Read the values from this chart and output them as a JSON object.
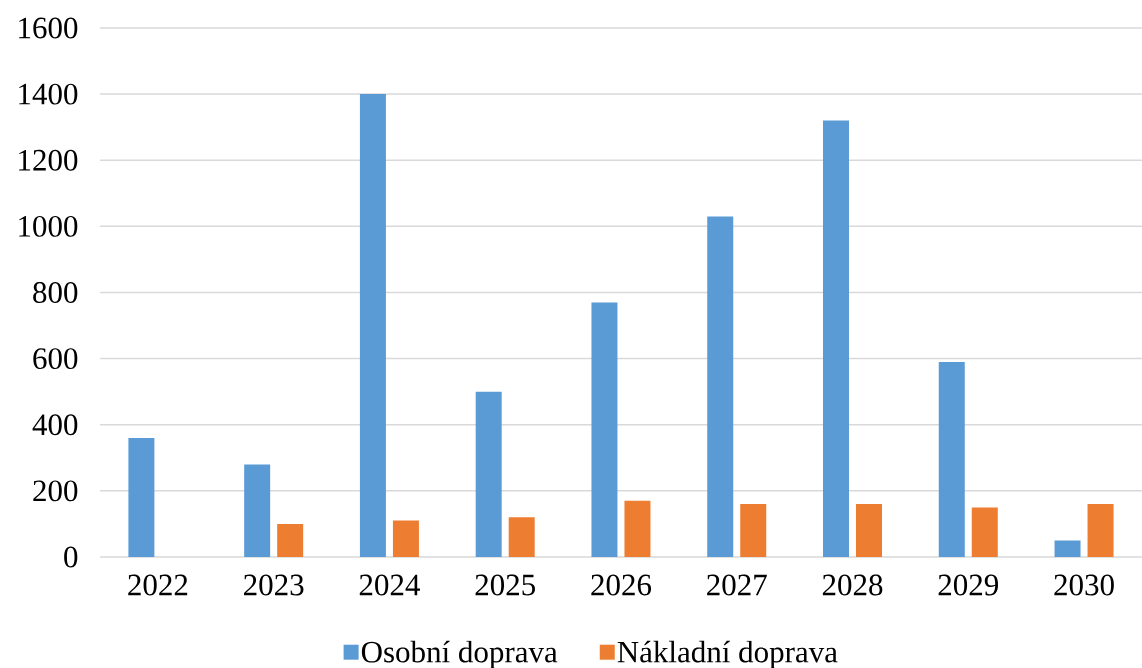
{
  "chart_data": {
    "type": "bar",
    "categories": [
      "2022",
      "2023",
      "2024",
      "2025",
      "2026",
      "2027",
      "2028",
      "2029",
      "2030"
    ],
    "series": [
      {
        "name": "Osobní doprava",
        "color": "#5b9bd5",
        "values": [
          360,
          280,
          1400,
          500,
          770,
          1030,
          1320,
          590,
          50
        ]
      },
      {
        "name": "Nákladní doprava",
        "color": "#ed7d31",
        "values": [
          null,
          100,
          110,
          120,
          170,
          160,
          160,
          150,
          160
        ]
      }
    ],
    "ylim": [
      0,
      1600
    ],
    "yticks": [
      0,
      200,
      400,
      600,
      800,
      1000,
      1200,
      1400,
      1600
    ],
    "grid": "y",
    "legend": "bottom"
  }
}
